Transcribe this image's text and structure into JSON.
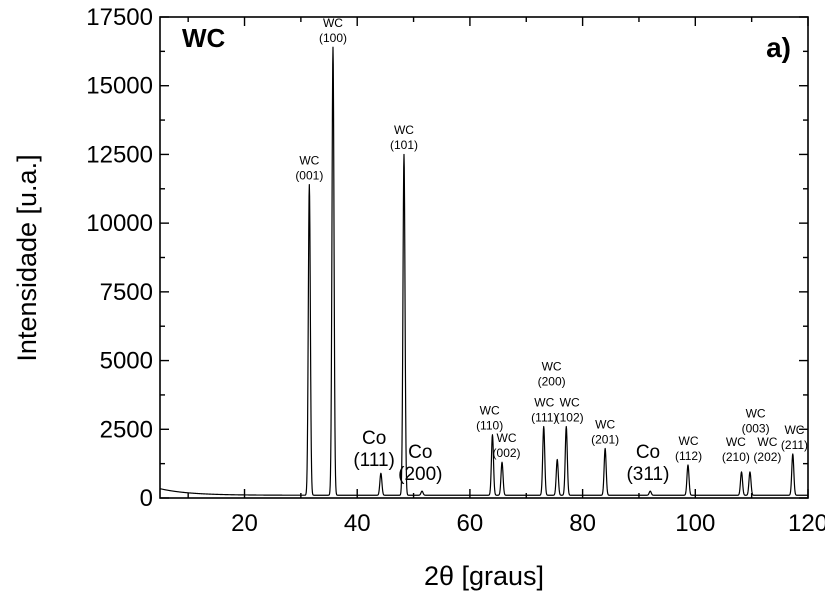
{
  "chart_data": {
    "type": "line",
    "title": "WC",
    "panel_label": "a)",
    "xlabel": "2θ [graus]",
    "ylabel": "Intensidade [u.a.]",
    "xlim": [
      5,
      120
    ],
    "ylim": [
      0,
      17500
    ],
    "x_ticks": [
      20,
      40,
      60,
      80,
      100,
      120
    ],
    "y_ticks": [
      0,
      2500,
      5000,
      7500,
      10000,
      12500,
      15000,
      17500
    ],
    "grid": false,
    "series": [
      {
        "peaks": [
          {
            "x": 31.5,
            "y": 11300
          },
          {
            "x": 35.7,
            "y": 16300
          },
          {
            "x": 44.2,
            "y": 800
          },
          {
            "x": 48.3,
            "y": 12400
          },
          {
            "x": 51.5,
            "y": 150
          },
          {
            "x": 64.0,
            "y": 2200
          },
          {
            "x": 65.7,
            "y": 1200
          },
          {
            "x": 73.1,
            "y": 2500
          },
          {
            "x": 75.5,
            "y": 1300
          },
          {
            "x": 77.1,
            "y": 2500
          },
          {
            "x": 84.0,
            "y": 1700
          },
          {
            "x": 92.0,
            "y": 150
          },
          {
            "x": 98.7,
            "y": 1100
          },
          {
            "x": 108.2,
            "y": 850
          },
          {
            "x": 109.7,
            "y": 850
          },
          {
            "x": 117.3,
            "y": 1500
          }
        ]
      }
    ],
    "annotations": [
      {
        "lines": [
          "WC",
          "(001)"
        ],
        "x": 31.5,
        "y": 11300,
        "size": "small"
      },
      {
        "lines": [
          "WC",
          "(100)"
        ],
        "x": 35.7,
        "y": 16300,
        "size": "small"
      },
      {
        "lines": [
          "WC",
          "(101)"
        ],
        "x": 48.3,
        "y": 12400,
        "size": "small"
      },
      {
        "lines": [
          "Co",
          "(111)"
        ],
        "x": 43.0,
        "y": 800,
        "size": "large"
      },
      {
        "lines": [
          "Co",
          "(200)"
        ],
        "x": 51.2,
        "y": 300,
        "size": "large"
      },
      {
        "lines": [
          "WC",
          "(110)"
        ],
        "x": 63.5,
        "y": 2200,
        "size": "small"
      },
      {
        "lines": [
          "WC",
          "(002)"
        ],
        "x": 66.5,
        "y": 1200,
        "size": "small"
      },
      {
        "lines": [
          "WC",
          "(200)"
        ],
        "x": 74.5,
        "y": 3800,
        "size": "small"
      },
      {
        "lines": [
          "WC",
          "(111)"
        ],
        "x": 73.2,
        "y": 2500,
        "size": "small"
      },
      {
        "lines": [
          "WC",
          "(102)"
        ],
        "x": 77.7,
        "y": 2500,
        "size": "small"
      },
      {
        "lines": [
          "WC",
          "(201)"
        ],
        "x": 84.0,
        "y": 1700,
        "size": "small"
      },
      {
        "lines": [
          "Co",
          "(311)"
        ],
        "x": 91.6,
        "y": 300,
        "size": "large"
      },
      {
        "lines": [
          "WC",
          "(112)"
        ],
        "x": 98.8,
        "y": 1100,
        "size": "small"
      },
      {
        "lines": [
          "WC",
          "(210)"
        ],
        "x": 107.2,
        "y": 1050,
        "size": "small"
      },
      {
        "lines": [
          "WC",
          "(003)"
        ],
        "x": 110.7,
        "y": 2100,
        "size": "small"
      },
      {
        "lines": [
          "WC",
          "(202)"
        ],
        "x": 112.8,
        "y": 1050,
        "size": "small"
      },
      {
        "lines": [
          "WC",
          "(211)"
        ],
        "x": 117.6,
        "y": 1500,
        "size": "small"
      }
    ]
  }
}
